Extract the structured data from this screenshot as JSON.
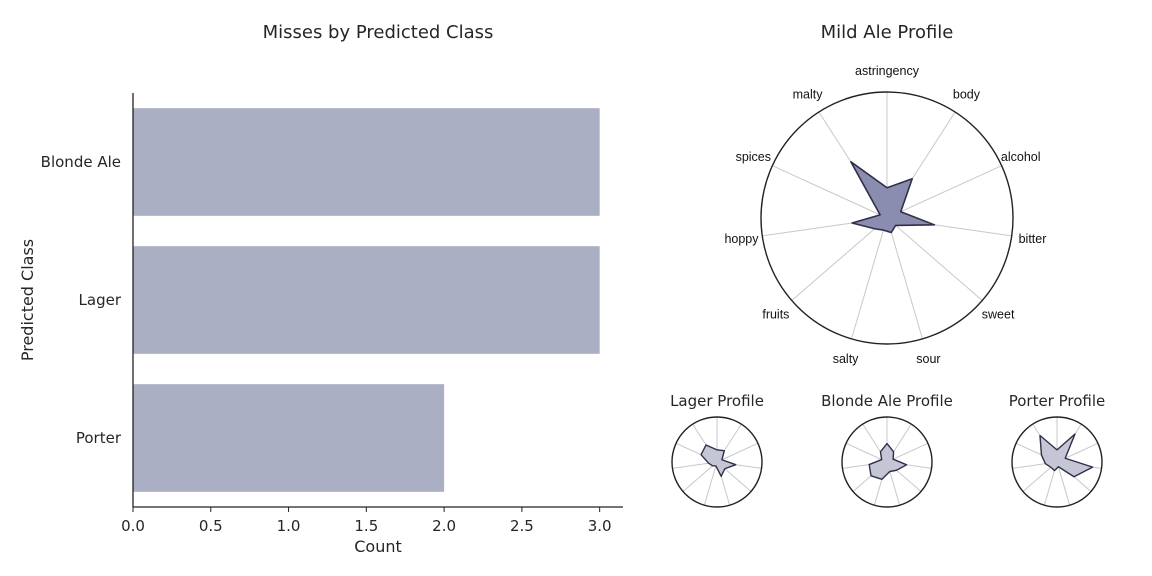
{
  "colors": {
    "bar": "#abafc4",
    "radar_main_fill": "#8a8db0",
    "radar_small_fill": "#c4c6d6",
    "radar_edge": "#2f3048",
    "spoke": "#c8c8c8",
    "axis": "#222222"
  },
  "chart_data": [
    {
      "type": "bar",
      "orientation": "horizontal",
      "title": "Misses by Predicted Class",
      "xlabel": "Count",
      "ylabel": "Predicted Class",
      "categories": [
        "Blonde Ale",
        "Lager",
        "Porter"
      ],
      "values": [
        3,
        3,
        2
      ],
      "xlim": [
        0,
        3.15
      ],
      "xticks": [
        "0.0",
        "0.5",
        "1.0",
        "1.5",
        "2.0",
        "2.5",
        "3.0"
      ],
      "grid": false
    },
    {
      "type": "radar",
      "title": "Mild Ale Profile",
      "axes": [
        "astringency",
        "body",
        "alcohol",
        "bitter",
        "sweet",
        "sour",
        "salty",
        "fruits",
        "hoppy",
        "spices",
        "malty"
      ],
      "values": [
        0.24,
        0.37,
        0.12,
        0.38,
        0.09,
        0.12,
        0.1,
        0.13,
        0.28,
        0.06,
        0.53
      ],
      "rmax": 1
    },
    {
      "type": "radar",
      "title": "Lager Profile",
      "values": [
        0.27,
        0.3,
        0.12,
        0.42,
        0.23,
        0.33,
        0.09,
        0.13,
        0.19,
        0.39,
        0.45
      ],
      "rmax": 1
    },
    {
      "type": "radar",
      "title": "Blonde Ale Profile",
      "values": [
        0.41,
        0.27,
        0.15,
        0.44,
        0.28,
        0.22,
        0.4,
        0.47,
        0.4,
        0.13,
        0.27
      ],
      "rmax": 1
    },
    {
      "type": "radar",
      "title": "Porter Profile",
      "values": [
        0.27,
        0.74,
        0.2,
        0.8,
        0.5,
        0.11,
        0.2,
        0.18,
        0.26,
        0.38,
        0.7
      ],
      "rmax": 1
    }
  ]
}
